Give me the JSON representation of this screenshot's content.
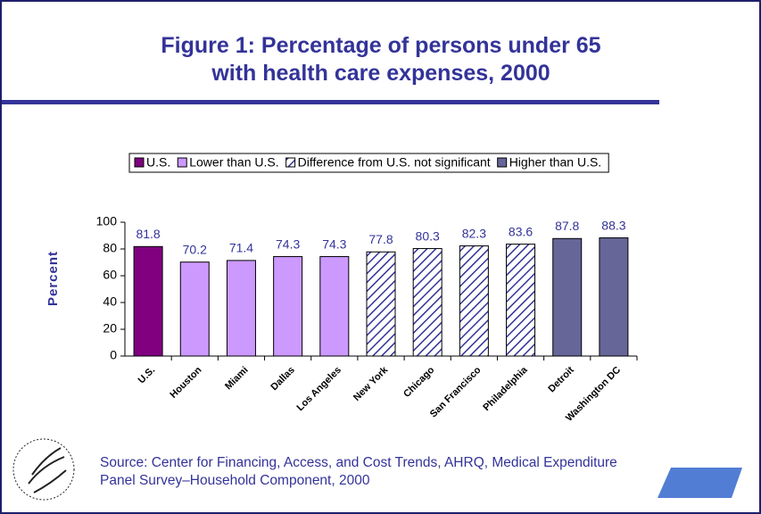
{
  "chart_data": {
    "type": "bar",
    "title": "Figure 1: Percentage of persons under 65 with health care expenses, 2000",
    "y_label": "Percent",
    "source": "Source: Center for Financing, Access, and Cost Trends, AHRQ, Medical Expenditure Panel Survey–Household Component, 2000",
    "categories": [
      "U.S.",
      "Houston",
      "Miami",
      "Dallas",
      "Los Angeles",
      "New York",
      "Chicago",
      "San Francisco",
      "Philadelphia",
      "Detroit",
      "Washington DC"
    ],
    "series": [
      {
        "name": "U.S.",
        "color": "#800080",
        "values": [
          81.8,
          null,
          null,
          null,
          null,
          null,
          null,
          null,
          null,
          null,
          null
        ]
      },
      {
        "name": "Lower than U.S.",
        "color": "#cc99ff",
        "values": [
          null,
          70.2,
          71.4,
          74.3,
          74.3,
          null,
          null,
          null,
          null,
          null,
          null
        ]
      },
      {
        "name": "Difference from U.S. not significant",
        "color": "#333399",
        "pattern": "hatch",
        "values": [
          null,
          null,
          null,
          null,
          null,
          77.8,
          80.3,
          82.3,
          83.6,
          null,
          null
        ]
      },
      {
        "name": "Higher than U.S.",
        "color": "#666699",
        "values": [
          null,
          null,
          null,
          null,
          null,
          null,
          null,
          null,
          null,
          87.8,
          88.3
        ]
      }
    ],
    "ylim": [
      0,
      100
    ],
    "yticks": [
      0,
      20,
      40,
      60,
      80,
      100
    ],
    "legend": "top"
  }
}
